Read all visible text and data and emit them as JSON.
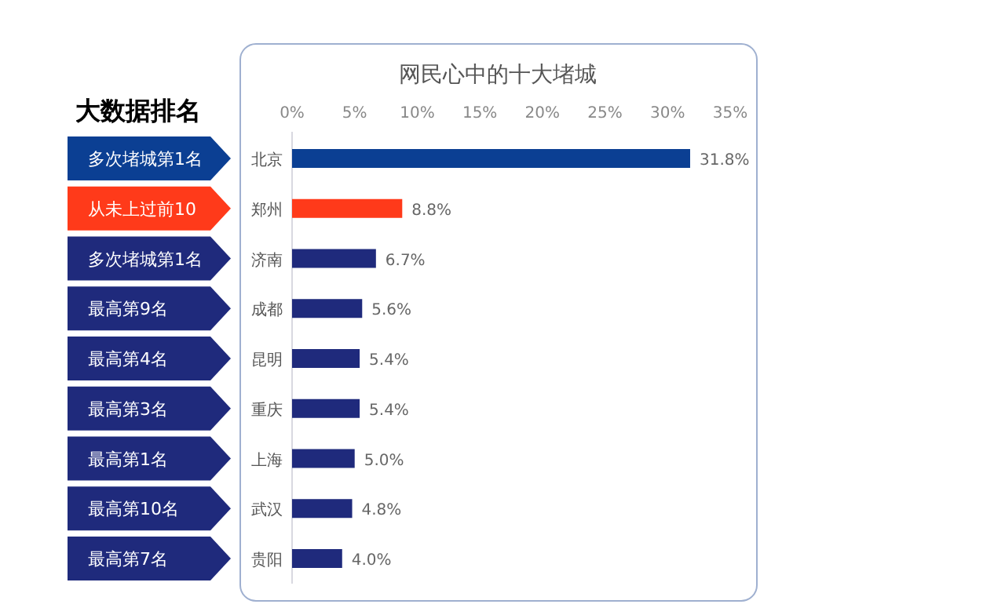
{
  "chart_data": {
    "type": "bar",
    "orientation": "horizontal",
    "title": "网民心中的十大堵城",
    "categories": [
      "北京",
      "郑州",
      "济南",
      "成都",
      "昆明",
      "重庆",
      "上海",
      "武汉",
      "贵阳"
    ],
    "values": [
      31.8,
      8.8,
      6.7,
      5.6,
      5.4,
      5.4,
      5.0,
      4.8,
      4.0
    ],
    "colors": [
      "#0b3f93",
      "#ff3a1a",
      "#1f2a7c",
      "#1f2a7c",
      "#1f2a7c",
      "#1f2a7c",
      "#1f2a7c",
      "#1f2a7c",
      "#1f2a7c"
    ],
    "value_labels": [
      "31.8%",
      "8.8%",
      "6.7%",
      "5.6%",
      "5.4%",
      "5.4%",
      "5.0%",
      "4.8%",
      "4.0%"
    ],
    "xlim": [
      0,
      35
    ],
    "xticks": [
      {
        "value": 0,
        "label": "0%"
      },
      {
        "value": 5,
        "label": "5%"
      },
      {
        "value": 10,
        "label": "10%"
      },
      {
        "value": 15,
        "label": "15%"
      },
      {
        "value": 20,
        "label": "20%"
      },
      {
        "value": 25,
        "label": "25%"
      },
      {
        "value": 30,
        "label": "30%"
      },
      {
        "value": 35,
        "label": "35%"
      }
    ],
    "grid": false,
    "annotations": [
      "大数据排名",
      "多次堵城第1名",
      "从未上过前10",
      "多次堵城第1名",
      "最高第9名",
      "最高第4名",
      "最高第3名",
      "最高第1名",
      "最高第10名",
      "最高第7名"
    ]
  }
}
